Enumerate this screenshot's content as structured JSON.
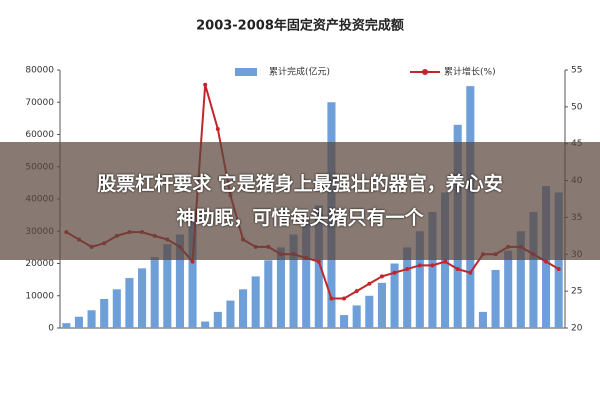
{
  "chart_data": {
    "type": "bar_line",
    "title": "2003-2008年固定资产投资完成额",
    "categories": [
      null,
      null,
      null,
      null,
      null,
      null,
      null,
      null,
      null,
      null,
      null,
      null,
      null,
      null,
      null,
      null,
      null,
      null,
      null,
      null,
      null,
      null,
      null,
      null,
      null,
      null,
      null,
      null,
      null,
      null,
      null,
      null,
      null,
      null,
      null,
      null,
      null,
      null,
      null,
      null
    ],
    "series": [
      {
        "name": "累计完成(亿元)",
        "color": "#6f9fd8",
        "type": "bar",
        "values": [
          1500,
          3500,
          5500,
          9000,
          12000,
          15500,
          18500,
          22000,
          26000,
          29000,
          34000,
          2000,
          5000,
          8500,
          12000,
          16000,
          21000,
          25000,
          29000,
          34000,
          38000,
          70000,
          4000,
          7000,
          10000,
          14000,
          20000,
          25000,
          30000,
          36000,
          42000,
          63000,
          75000,
          5000,
          18000,
          24000,
          30000,
          36000,
          44000,
          42000
        ]
      },
      {
        "name": "累计增长(%)",
        "color": "#c0262a",
        "type": "line",
        "axis": "y2",
        "values": [
          33,
          32,
          31,
          31.5,
          32.5,
          33,
          33,
          32.5,
          32,
          31,
          29,
          53,
          47,
          38,
          32,
          31,
          31,
          30,
          30,
          29.5,
          29,
          24,
          24,
          25,
          26,
          27,
          27.5,
          28,
          28.5,
          28.5,
          29,
          28,
          27.5,
          30,
          30,
          31,
          31,
          30,
          29,
          28
        ]
      }
    ],
    "ylim": [
      0,
      80000
    ],
    "yticks": [
      0,
      10000,
      20000,
      30000,
      40000,
      50000,
      60000,
      70000,
      80000
    ],
    "y2lim": [
      20,
      55
    ],
    "y2ticks": [
      20,
      25,
      30,
      35,
      40,
      45,
      50,
      55
    ]
  },
  "overlay": {
    "lines": [
      "股票杠杆要求 它是猪身上最强壮的器官，养心安",
      "神助眠，可惜每头猪只有一个"
    ]
  }
}
